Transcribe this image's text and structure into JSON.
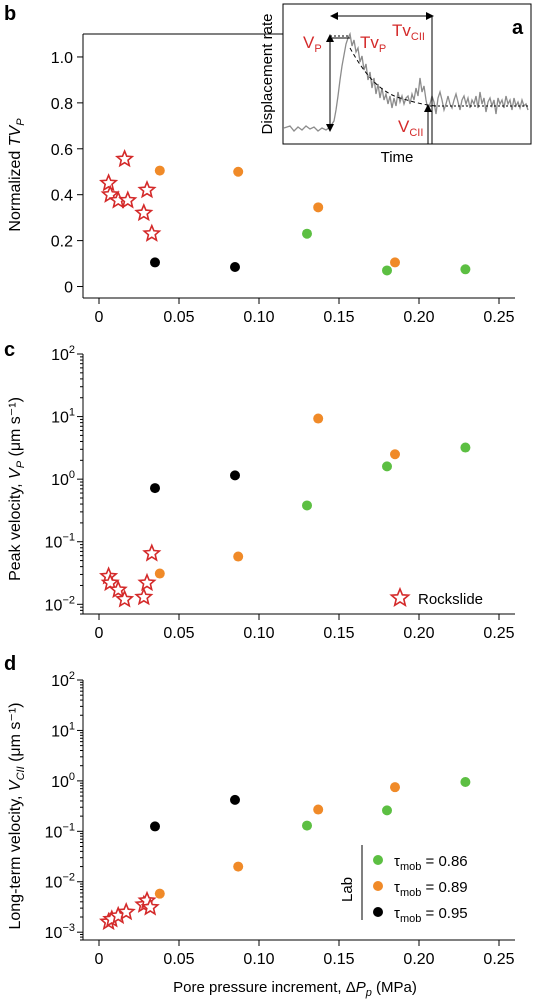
{
  "colors": {
    "lab_086": "#5cbf42",
    "lab_089": "#f08a28",
    "lab_095": "#000000",
    "rockslide": "#d42a2a",
    "inset_trace": "#8c8c8c",
    "inset_annotation": "#d42a2a"
  },
  "chart_data": [
    {
      "panel": "b",
      "type": "scatter",
      "ylabel_text": "Normalized ",
      "ylabel_italic": "TV",
      "ylabel_sub": "P",
      "xlim": [
        -0.01,
        0.26
      ],
      "ylim": [
        -0.05,
        1.1
      ],
      "xscale": "linear",
      "yscale": "linear",
      "xticks": [
        0,
        0.05,
        0.1,
        0.15,
        0.2,
        0.25
      ],
      "xtick_labels": [
        "0",
        "0.05",
        "0.10",
        "0.15",
        "0.20",
        "0.25"
      ],
      "yticks": [
        0,
        0.2,
        0.4,
        0.6,
        0.8,
        1.0
      ],
      "ytick_labels": [
        "0",
        "0.2",
        "0.4",
        "0.6",
        "0.8",
        "1.0"
      ],
      "series": [
        {
          "key": "lab_086",
          "marker": "circle",
          "x": [
            0.13,
            0.18,
            0.229
          ],
          "y": [
            0.23,
            0.07,
            0.075
          ]
        },
        {
          "key": "lab_089",
          "marker": "circle",
          "x": [
            0.038,
            0.087,
            0.137,
            0.185
          ],
          "y": [
            0.505,
            0.5,
            0.345,
            0.105
          ]
        },
        {
          "key": "lab_095",
          "marker": "circle",
          "x": [
            0.035,
            0.085
          ],
          "y": [
            0.105,
            0.085
          ]
        },
        {
          "key": "rockslide",
          "marker": "star",
          "x": [
            0.006,
            0.007,
            0.012,
            0.016,
            0.018,
            0.028,
            0.03,
            0.033
          ],
          "y": [
            0.45,
            0.4,
            0.375,
            0.555,
            0.375,
            0.32,
            0.42,
            0.23
          ]
        }
      ]
    },
    {
      "panel": "c",
      "type": "scatter",
      "ylabel_text": "Peak velocity, ",
      "ylabel_italic": "V",
      "ylabel_sub": "P",
      "ylabel_unit": " (μm s⁻¹)",
      "xlim": [
        -0.01,
        0.26
      ],
      "ylim": [
        0.007,
        100
      ],
      "xscale": "linear",
      "yscale": "log",
      "xticks": [
        0,
        0.05,
        0.1,
        0.15,
        0.2,
        0.25
      ],
      "xtick_labels": [
        "0",
        "0.05",
        "0.10",
        "0.15",
        "0.20",
        "0.25"
      ],
      "yticks": [
        0.01,
        0.1,
        1,
        10,
        100
      ],
      "ytick_labels": [
        [
          "10",
          "−2"
        ],
        [
          "10",
          "−1"
        ],
        [
          "10",
          "0"
        ],
        [
          "10",
          "1"
        ],
        [
          "10",
          "2"
        ]
      ],
      "legend": {
        "label": "Rockslide",
        "position": "lower-right"
      },
      "series": [
        {
          "key": "lab_086",
          "marker": "circle",
          "x": [
            0.13,
            0.18,
            0.229
          ],
          "y": [
            0.38,
            1.6,
            3.2
          ]
        },
        {
          "key": "lab_089",
          "marker": "circle",
          "x": [
            0.038,
            0.087,
            0.137,
            0.185
          ],
          "y": [
            0.031,
            0.058,
            9.3,
            2.5
          ]
        },
        {
          "key": "lab_095",
          "marker": "circle",
          "x": [
            0.035,
            0.085
          ],
          "y": [
            0.72,
            1.15
          ]
        },
        {
          "key": "rockslide",
          "marker": "star",
          "x": [
            0.006,
            0.007,
            0.012,
            0.016,
            0.028,
            0.03,
            0.033
          ],
          "y": [
            0.028,
            0.022,
            0.017,
            0.012,
            0.013,
            0.022,
            0.065
          ]
        }
      ]
    },
    {
      "panel": "d",
      "type": "scatter",
      "ylabel_text": "Long-term velocity, ",
      "ylabel_italic": "V",
      "ylabel_sub": "CII",
      "ylabel_unit": " (μm s⁻¹)",
      "xlabel_text": "Pore pressure increment, Δ",
      "xlabel_italic": "P",
      "xlabel_sub": "p",
      "xlabel_unit": " (MPa)",
      "xlim": [
        -0.01,
        0.26
      ],
      "ylim": [
        0.0007,
        100
      ],
      "xscale": "linear",
      "yscale": "log",
      "xticks": [
        0,
        0.05,
        0.1,
        0.15,
        0.2,
        0.25
      ],
      "xtick_labels": [
        "0",
        "0.05",
        "0.10",
        "0.15",
        "0.20",
        "0.25"
      ],
      "yticks": [
        0.001,
        0.01,
        0.1,
        1,
        10,
        100
      ],
      "ytick_labels": [
        [
          "10",
          "−3"
        ],
        [
          "10",
          "−2"
        ],
        [
          "10",
          "−1"
        ],
        [
          "10",
          "0"
        ],
        [
          "10",
          "1"
        ],
        [
          "10",
          "2"
        ]
      ],
      "legend": {
        "title": "Lab",
        "position": "lower-right",
        "entries": [
          {
            "key": "lab_086",
            "symbol": "τ",
            "sub": "mob",
            "value": " = 0.86"
          },
          {
            "key": "lab_089",
            "symbol": "τ",
            "sub": "mob",
            "value": " = 0.89"
          },
          {
            "key": "lab_095",
            "symbol": "τ",
            "sub": "mob",
            "value": " = 0.95"
          }
        ]
      },
      "series": [
        {
          "key": "lab_086",
          "marker": "circle",
          "x": [
            0.13,
            0.18,
            0.229
          ],
          "y": [
            0.13,
            0.26,
            0.95
          ]
        },
        {
          "key": "lab_089",
          "marker": "circle",
          "x": [
            0.038,
            0.087,
            0.137,
            0.185
          ],
          "y": [
            0.0058,
            0.02,
            0.27,
            0.75
          ]
        },
        {
          "key": "lab_095",
          "marker": "circle",
          "x": [
            0.035,
            0.085
          ],
          "y": [
            0.125,
            0.42
          ]
        },
        {
          "key": "rockslide",
          "marker": "star",
          "x": [
            0.006,
            0.008,
            0.012,
            0.017,
            0.028,
            0.03,
            0.032
          ],
          "y": [
            0.0016,
            0.0018,
            0.0021,
            0.0025,
            0.0035,
            0.0042,
            0.0031
          ]
        }
      ]
    }
  ],
  "inset": {
    "panel": "a",
    "type": "line",
    "xlabel": "Time",
    "ylabel": "Displacement rate",
    "annotations": {
      "vp": "V",
      "vp_sub": "P",
      "tvp": "Tv",
      "tvp_sub": "P",
      "tvcii": "Tv",
      "tvcii_sub": "CII",
      "vcii": "V",
      "vcii_sub": "CII"
    }
  }
}
